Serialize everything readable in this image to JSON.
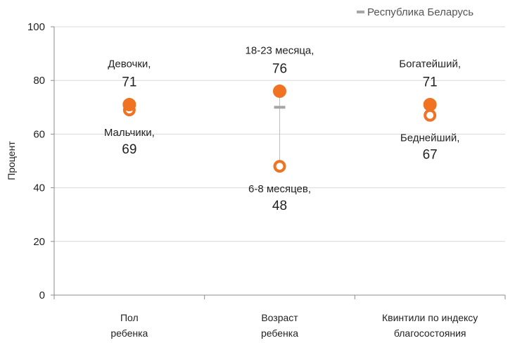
{
  "chart_data": {
    "type": "scatter",
    "ylabel": "Процент",
    "ylim": [
      0,
      100
    ],
    "yticks": [
      0,
      20,
      40,
      60,
      80,
      100
    ],
    "grid": true,
    "legend": {
      "position": "top-right",
      "label": "Республика Беларусь"
    },
    "colors": {
      "marker": "#f07223",
      "national": "#a6a6a6",
      "axis": "#8c8c8c",
      "grid": "#d9d9d9"
    },
    "categories": [
      {
        "label": [
          "Пол",
          "ребенка"
        ],
        "national": 70,
        "high": {
          "name": "Девочки,",
          "value": 71,
          "value_text": "71"
        },
        "low": {
          "name": "Мальчики,",
          "value": 69,
          "value_text": "69"
        }
      },
      {
        "label": [
          "Возраст",
          "ребенка"
        ],
        "national": 70,
        "high": {
          "name": "18-23 месяца,",
          "value": 76,
          "value_text": "76"
        },
        "low": {
          "name": "6-8 месяцев,",
          "value": 48,
          "value_text": "48"
        }
      },
      {
        "label": [
          "Квинтили по индексу",
          "благосостояния"
        ],
        "national": 70,
        "high": {
          "name": "Богатейший,",
          "value": 71,
          "value_text": "71"
        },
        "low": {
          "name": "Беднейший,",
          "value": 67,
          "value_text": "67"
        }
      }
    ]
  }
}
